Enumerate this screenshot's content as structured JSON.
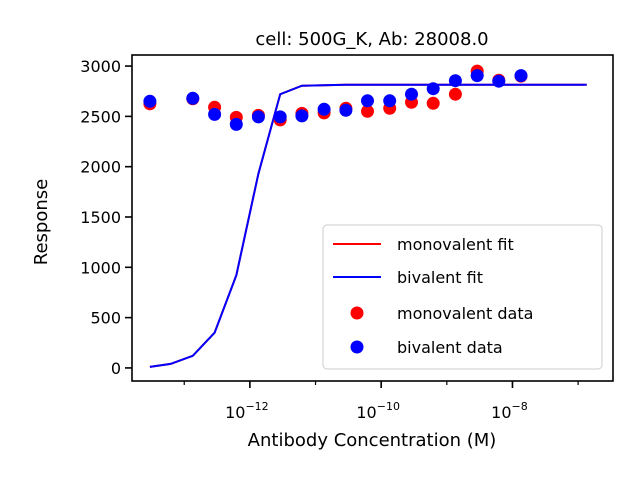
{
  "chart_data": {
    "type": "scatter",
    "title": "cell: 500G_K, Ab: 28008.0",
    "xlabel": "Antibody Concentration (M)",
    "ylabel": "Response",
    "xscale": "log",
    "xlim": [
      1.6e-14,
      3.4e-07
    ],
    "ylim": [
      -130,
      3110
    ],
    "yticks": [
      0,
      500,
      1000,
      1500,
      2000,
      2500,
      3000
    ],
    "xticks": [
      1e-12,
      1e-10,
      1e-08
    ],
    "xtick_labels": [
      {
        "base": "10",
        "exp": "−12"
      },
      {
        "base": "10",
        "exp": "−10"
      },
      {
        "base": "10",
        "exp": "−8"
      }
    ],
    "grid": false,
    "legend": {
      "position": "lower-right",
      "entries": [
        {
          "label": "monovalent fit",
          "kind": "line",
          "color": "#ff0000"
        },
        {
          "label": "bivalent fit",
          "kind": "line",
          "color": "#0000ff"
        },
        {
          "label": "monovalent data",
          "kind": "marker",
          "color": "#ff0000"
        },
        {
          "label": "bivalent data",
          "kind": "marker",
          "color": "#0000ff"
        }
      ]
    },
    "x": [
      3e-14,
      6.2e-14,
      1.35e-13,
      2.9e-13,
      6.2e-13,
      1.35e-12,
      2.9e-12,
      6.2e-12,
      1.35e-11,
      2.9e-11,
      6.2e-11,
      1.35e-10,
      2.9e-10,
      6.2e-10,
      1.35e-09,
      2.9e-09,
      6.2e-09,
      1.35e-08,
      2.9e-08,
      6.2e-08,
      1.35e-07
    ],
    "series": [
      {
        "name": "monovalent data",
        "kind": "scatter",
        "color": "#ff0000",
        "x": [
          3e-14,
          1.35e-13,
          2.9e-13,
          6.2e-13,
          1.35e-12,
          2.9e-12,
          6.2e-12,
          1.35e-11,
          2.9e-11,
          6.2e-11,
          1.35e-10,
          2.9e-10,
          6.2e-10,
          1.35e-09,
          2.9e-09,
          6.2e-09,
          1.35e-08
        ],
        "y": [
          2625,
          2675,
          2590,
          2490,
          2510,
          2465,
          2530,
          2535,
          2580,
          2550,
          2580,
          2640,
          2630,
          2720,
          2950,
          2860,
          2900
        ]
      },
      {
        "name": "bivalent data",
        "kind": "scatter",
        "color": "#0000ff",
        "x": [
          3e-14,
          1.35e-13,
          2.9e-13,
          6.2e-13,
          1.35e-12,
          2.9e-12,
          6.2e-12,
          1.35e-11,
          2.9e-11,
          6.2e-11,
          1.35e-10,
          2.9e-10,
          6.2e-10,
          1.35e-09,
          2.9e-09,
          6.2e-09,
          1.35e-08
        ],
        "y": [
          2650,
          2680,
          2520,
          2420,
          2495,
          2495,
          2505,
          2570,
          2560,
          2655,
          2655,
          2720,
          2775,
          2855,
          2905,
          2850,
          2905
        ]
      },
      {
        "name": "monovalent fit",
        "kind": "line",
        "color": "#ff0000",
        "x": [
          3e-14,
          6.2e-14,
          1.35e-13,
          2.9e-13,
          6.2e-13,
          1.35e-12,
          2.9e-12,
          6.2e-12,
          1.35e-11,
          2.9e-11,
          6.2e-11,
          1.35e-10,
          2.9e-10,
          6.2e-10,
          1.35e-09,
          2.9e-09,
          6.2e-09,
          1.35e-08,
          2.9e-08,
          6.2e-08,
          1.35e-07
        ],
        "y": [
          10,
          40,
          120,
          350,
          920,
          1930,
          2720,
          2805,
          2810,
          2815,
          2815,
          2815,
          2815,
          2815,
          2815,
          2815,
          2815,
          2815,
          2815,
          2815,
          2815
        ]
      },
      {
        "name": "bivalent fit",
        "kind": "line",
        "color": "#0000ff",
        "x": [
          3e-14,
          6.2e-14,
          1.35e-13,
          2.9e-13,
          6.2e-13,
          1.35e-12,
          2.9e-12,
          6.2e-12,
          1.35e-11,
          2.9e-11,
          6.2e-11,
          1.35e-10,
          2.9e-10,
          6.2e-10,
          1.35e-09,
          2.9e-09,
          6.2e-09,
          1.35e-08,
          2.9e-08,
          6.2e-08,
          1.35e-07
        ],
        "y": [
          10,
          40,
          120,
          350,
          920,
          1930,
          2720,
          2805,
          2810,
          2815,
          2815,
          2815,
          2815,
          2815,
          2815,
          2815,
          2815,
          2815,
          2815,
          2815,
          2815
        ]
      }
    ]
  }
}
